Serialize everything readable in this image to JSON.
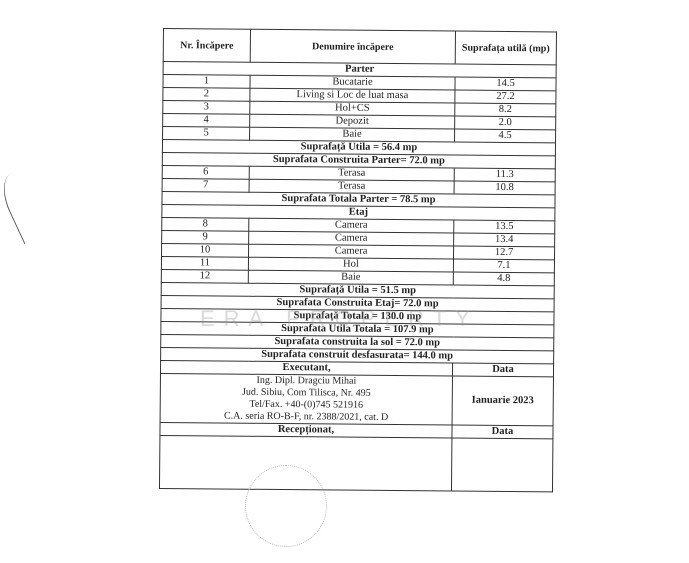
{
  "header": {
    "nr": "Nr. Încăpere",
    "name": "Denumire încăpere",
    "area": "Suprafața utilă (mp)"
  },
  "parter": {
    "title": "Parter",
    "rooms": [
      {
        "nr": "1",
        "name": "Bucatarie",
        "area": "14.5"
      },
      {
        "nr": "2",
        "name": "Living si Loc de luat masa",
        "area": "27.2"
      },
      {
        "nr": "3",
        "name": "Hol+CS",
        "area": "8.2"
      },
      {
        "nr": "4",
        "name": "Depozit",
        "area": "2.0"
      },
      {
        "nr": "5",
        "name": "Baie",
        "area": "4.5"
      }
    ],
    "util": "Suprafață Utila = 56.4 mp",
    "construita": "Suprafata Construita Parter= 72.0 mp",
    "terase": [
      {
        "nr": "6",
        "name": "Terasa",
        "area": "11.3"
      },
      {
        "nr": "7",
        "name": "Terasa",
        "area": "10.8"
      }
    ],
    "totala": "Suprafata Totala Parter = 78.5 mp"
  },
  "etaj": {
    "title": "Etaj",
    "rooms": [
      {
        "nr": "8",
        "name": "Camera",
        "area": "13.5"
      },
      {
        "nr": "9",
        "name": "Camera",
        "area": "13.4"
      },
      {
        "nr": "10",
        "name": "Camera",
        "area": "12.7"
      },
      {
        "nr": "11",
        "name": "Hol",
        "area": "7.1"
      },
      {
        "nr": "12",
        "name": "Baie",
        "area": "4.8"
      }
    ],
    "util": "Suprafață Utila = 51.5 mp",
    "construita": "Suprafata Construita Etaj= 72.0 mp"
  },
  "totals": [
    "Suprafață Totala = 130.0 mp",
    "Suprafata Utila Totala = 107.9 mp",
    "Suprafata construita la sol = 72.0 mp",
    "Suprafata construit desfasurata= 144.0 mp"
  ],
  "executant": {
    "label": "Executant,",
    "lines": [
      "Ing. Dipl. Dragciu Mihai",
      "Jud. Sibiu, Com Tilisca, Nr. 495",
      "Tel/Fax. +40-(0)745 521916",
      "C.A. seria RO-B-F, nr. 2388/2021, cat. D"
    ],
    "data_label": "Data",
    "date": "Ianuarie 2023"
  },
  "receptionat": {
    "label": "Recepționat,",
    "data_label": "Data"
  },
  "watermark": "ERA PROPERTY"
}
